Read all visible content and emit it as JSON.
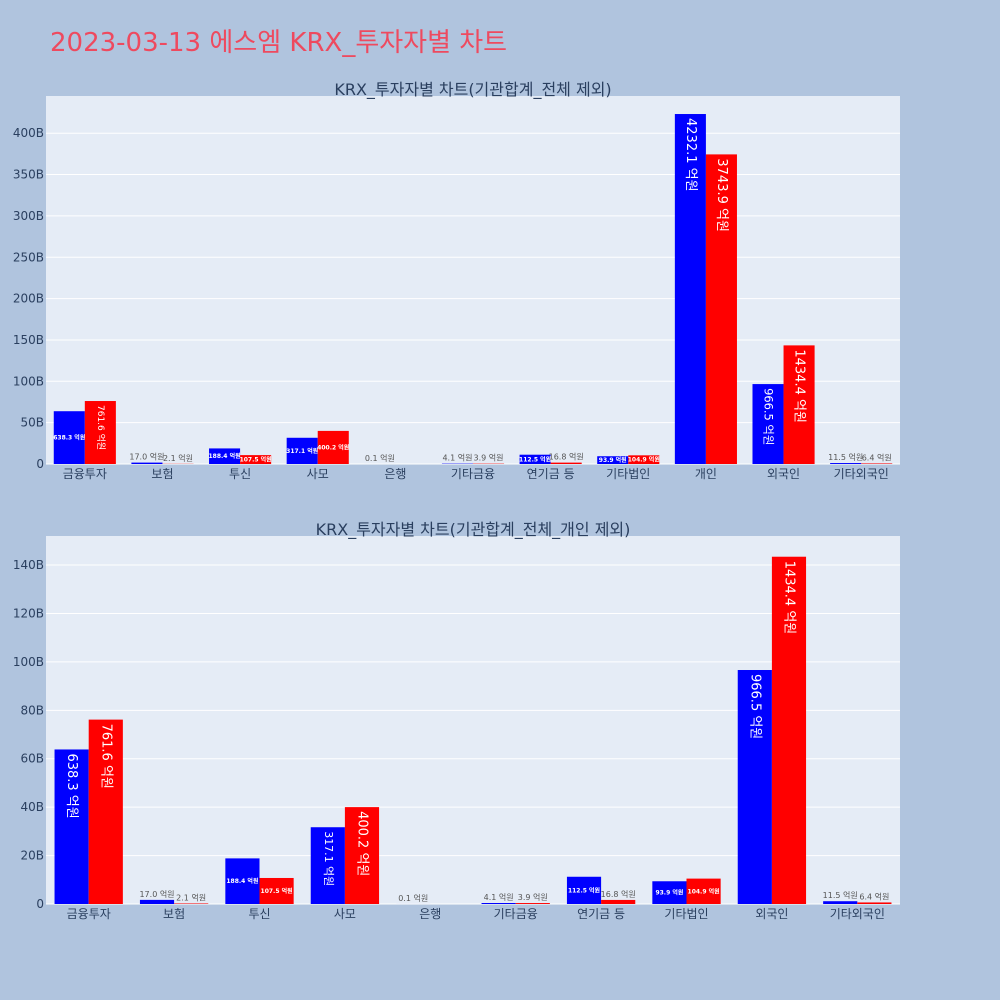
{
  "page": {
    "title": "2023-03-13 에스엠 KRX_투자자별 차트"
  },
  "colors": {
    "background": "#b0c4de",
    "plot_bg": "#e5ecf6",
    "grid": "#ffffff",
    "buy": "#0000ff",
    "sell": "#ff0000",
    "title": "#ee4a5f",
    "text": "#2a3f5f"
  },
  "chart_data": [
    {
      "type": "bar",
      "title": "KRX_투자자별 차트(기관합계_전체 제외)",
      "categories": [
        "금융투자",
        "보험",
        "투신",
        "사모",
        "은행",
        "기타금융",
        "연기금 등",
        "기타법인",
        "개인",
        "외국인",
        "기타외국인"
      ],
      "series": [
        {
          "color": "#0000ff",
          "values": [
            63.83,
            1.7,
            18.84,
            31.71,
            0.01,
            0.41,
            11.25,
            9.39,
            423.21,
            96.65,
            1.15
          ],
          "labels": [
            "638.3 억원",
            "17.0 억원",
            "188.4 억원",
            "317.1 억원",
            "0.1 억원",
            "4.1 억원",
            "112.5 억원",
            "93.9 억원",
            "4232.1 억원",
            "966.5 억원",
            "11.5 억원"
          ]
        },
        {
          "color": "#ff0000",
          "values": [
            76.16,
            0.21,
            10.75,
            40.02,
            0,
            0.39,
            1.68,
            10.49,
            374.39,
            143.44,
            0.64
          ],
          "labels": [
            "761.6 억원",
            "2.1 억원",
            "107.5 억원",
            "400.2 억원",
            "",
            "3.9 억원",
            "16.8 억원",
            "104.9 억원",
            "3743.9 억원",
            "1434.4 억원",
            "6.4 억원"
          ]
        }
      ],
      "ylim": [
        0,
        445
      ],
      "yticks": [
        0,
        50,
        100,
        150,
        200,
        250,
        300,
        350,
        400
      ],
      "ytick_labels": [
        "0",
        "50B",
        "100B",
        "150B",
        "200B",
        "250B",
        "300B",
        "350B",
        "400B"
      ]
    },
    {
      "type": "bar",
      "title": "KRX_투자자별 차트(기관합계_전체_개인 제외)",
      "categories": [
        "금융투자",
        "보험",
        "투신",
        "사모",
        "은행",
        "기타금융",
        "연기금 등",
        "기타법인",
        "외국인",
        "기타외국인"
      ],
      "series": [
        {
          "color": "#0000ff",
          "values": [
            63.83,
            1.7,
            18.84,
            31.71,
            0.01,
            0.41,
            11.25,
            9.39,
            96.65,
            1.15
          ],
          "labels": [
            "638.3 억원",
            "17.0 억원",
            "188.4 억원",
            "317.1 억원",
            "0.1 억원",
            "4.1 억원",
            "112.5 억원",
            "93.9 억원",
            "966.5 억원",
            "11.5 억원"
          ]
        },
        {
          "color": "#ff0000",
          "values": [
            76.16,
            0.21,
            10.75,
            40.02,
            0,
            0.39,
            1.68,
            10.49,
            143.44,
            0.64
          ],
          "labels": [
            "761.6 억원",
            "2.1 억원",
            "107.5 억원",
            "400.2 억원",
            "",
            "3.9 억원",
            "16.8 억원",
            "104.9 억원",
            "1434.4 억원",
            "6.4 억원"
          ]
        }
      ],
      "ylim": [
        0,
        152
      ],
      "yticks": [
        0,
        20,
        40,
        60,
        80,
        100,
        120,
        140
      ],
      "ytick_labels": [
        "0",
        "20B",
        "40B",
        "60B",
        "80B",
        "100B",
        "120B",
        "140B"
      ]
    }
  ]
}
